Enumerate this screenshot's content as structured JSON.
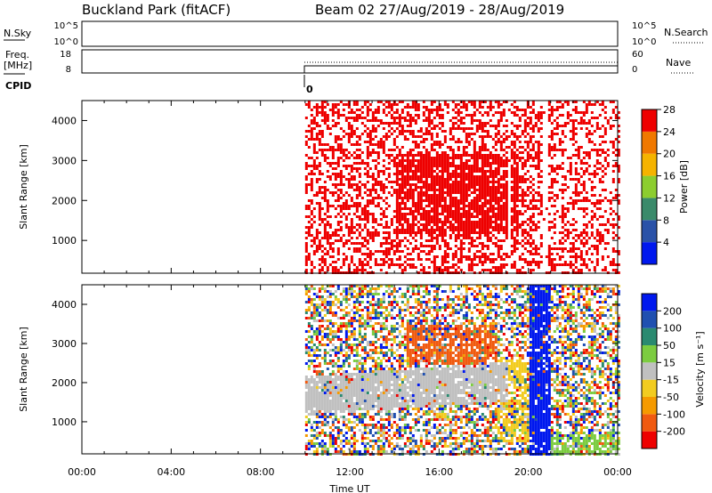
{
  "header": {
    "title_left": "Buckland Park (fitACF)",
    "title_right": "Beam 02 27/Aug/2019 - 28/Aug/2019"
  },
  "strips": {
    "nsky_label": "N.Sky",
    "nsky_ticks": [
      "10^5",
      "10^0"
    ],
    "nsky_right_ticks": [
      "10^5",
      "10^0"
    ],
    "nsearch_label": "N.Search",
    "freq_label_line1": "Freq.",
    "freq_label_line2": "[MHz]",
    "freq_ticks": [
      "18",
      "8"
    ],
    "nave_ticks": [
      "60",
      "0"
    ],
    "nave_label": "Nave",
    "cpid_label": "CPID",
    "cpid_value": "0"
  },
  "colorbars": {
    "power": {
      "label": "Power [dB]",
      "tick_labels": [
        "4",
        "8",
        "12",
        "16",
        "20",
        "24",
        "28"
      ],
      "colors": [
        "#0018ee",
        "#2a52a8",
        "#3a8a6a",
        "#8ccd2f",
        "#f5b300",
        "#f07800",
        "#ee0000"
      ]
    },
    "velocity": {
      "label": "Velocity [m s⁻¹]",
      "tick_labels": [
        "-200",
        "-100",
        "-50",
        "-15",
        "15",
        "50",
        "100",
        "200"
      ],
      "colors": [
        "#ee0000",
        "#f05a10",
        "#f59a00",
        "#f2cc20",
        "#c0c0c0",
        "#7ccc40",
        "#2a8a70",
        "#2050b0",
        "#0018ee"
      ]
    }
  },
  "chart_data": [
    {
      "type": "heatmap",
      "name": "power",
      "ylabel": "Slant Range [km]",
      "ylim": [
        180,
        4500
      ],
      "y_tick_labels": [
        "1000",
        "2000",
        "3000",
        "4000"
      ],
      "x_range_hours": [
        0,
        24
      ],
      "data_start_hour": 10.0,
      "dominant_color": "#ee0000",
      "gap_hours": [
        [
          19.0,
          19.2
        ],
        [
          20.6,
          20.8
        ]
      ]
    },
    {
      "type": "heatmap",
      "name": "velocity",
      "ylabel": "Slant Range [km]",
      "ylim": [
        180,
        4500
      ],
      "y_tick_labels": [
        "1000",
        "2000",
        "3000",
        "4000"
      ],
      "x_range_hours": [
        0,
        24
      ],
      "data_start_hour": 10.0,
      "xlabel": "Time UT",
      "x_tick_labels": [
        "00:00",
        "04:00",
        "08:00",
        "12:00",
        "16:00",
        "20:00",
        "00:00"
      ],
      "features": [
        {
          "label": "ground scatter (grey)",
          "color": "#c0c0c0"
        },
        {
          "label": "negative velocity patch",
          "color": "#f05a10"
        },
        {
          "label": "positive velocity band",
          "color": "#0018ee"
        }
      ]
    }
  ]
}
